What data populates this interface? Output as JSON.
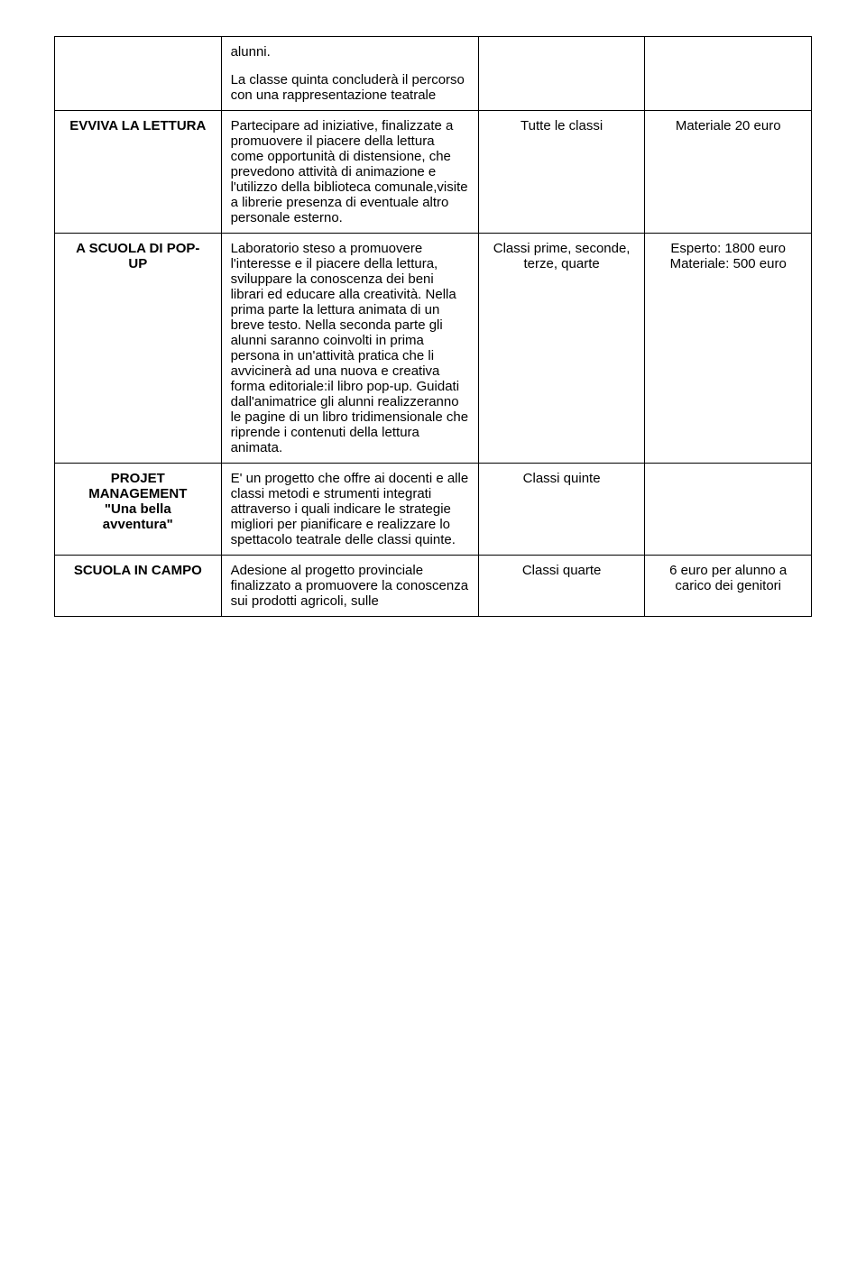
{
  "rows": [
    {
      "title_lines": [],
      "desc_blocks": [
        "alunni.",
        "La classe quinta concluderà il percorso con una rappresentazione teatrale"
      ],
      "col3": "",
      "col4": ""
    },
    {
      "title_lines": [
        "EVVIVA LA LETTURA"
      ],
      "desc_blocks": [
        "Partecipare ad iniziative, finalizzate a promuovere il piacere della lettura come opportunità di distensione, che prevedono attività di animazione e l'utilizzo della biblioteca comunale,visite a librerie presenza di eventuale altro personale esterno."
      ],
      "col3": "Tutte le classi",
      "col4": "Materiale 20 euro"
    },
    {
      "title_lines": [
        "A SCUOLA DI POP-",
        "UP"
      ],
      "desc_blocks": [
        "Laboratorio steso a promuovere l'interesse e il piacere della lettura, sviluppare la conoscenza dei beni librari ed educare alla creatività. Nella prima parte  la lettura animata di un breve testo. Nella seconda parte gli alunni saranno coinvolti in prima persona in un'attività pratica che li avvicinerà  ad una nuova e creativa forma editoriale:il libro pop-up. Guidati dall'animatrice gli alunni realizzeranno le pagine di un libro tridimensionale che riprende i contenuti della lettura animata."
      ],
      "col3": "Classi prime, seconde, terze, quarte",
      "col4": "Esperto: 1800 euro Materiale: 500 euro"
    },
    {
      "title_lines": [
        "PROJET",
        "MANAGEMENT",
        "\"Una bella",
        "avventura\""
      ],
      "desc_blocks": [
        "E' un progetto che offre ai docenti e alle classi metodi e strumenti integrati attraverso i quali indicare le strategie migliori per pianificare e realizzare lo spettacolo teatrale delle classi quinte."
      ],
      "col3": "Classi quinte",
      "col4": ""
    },
    {
      "title_lines": [
        "SCUOLA IN CAMPO"
      ],
      "desc_blocks": [
        "Adesione al progetto provinciale finalizzato a promuovere la conoscenza sui prodotti agricoli, sulle"
      ],
      "col3": "Classi quarte",
      "col4": "6 euro per alunno a carico dei genitori"
    }
  ]
}
